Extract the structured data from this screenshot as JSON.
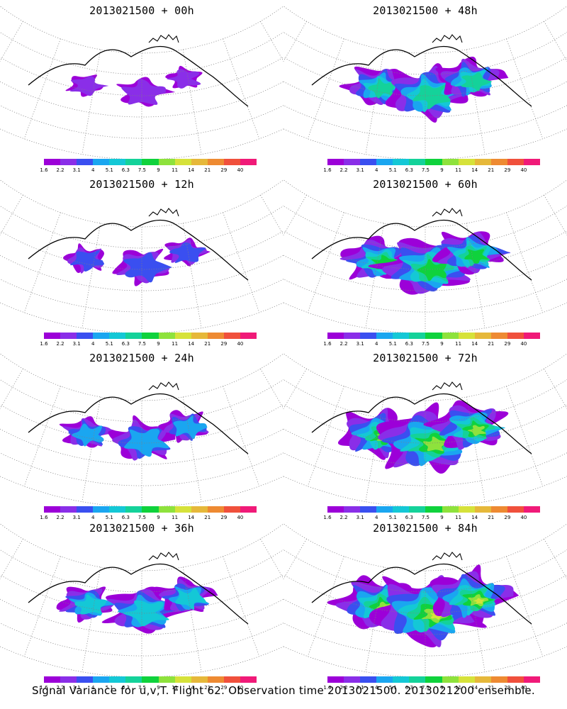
{
  "panels": [
    {
      "title": "2013021500  +  00h",
      "lead_hours": 0
    },
    {
      "title": "2013021500  +  48h",
      "lead_hours": 48
    },
    {
      "title": "2013021500  +  12h",
      "lead_hours": 12
    },
    {
      "title": "2013021500  +  60h",
      "lead_hours": 60
    },
    {
      "title": "2013021500  +  24h",
      "lead_hours": 24
    },
    {
      "title": "2013021500  +  72h",
      "lead_hours": 72
    },
    {
      "title": "2013021500  +  36h",
      "lead_hours": 36
    },
    {
      "title": "2013021500  +  84h",
      "lead_hours": 84
    }
  ],
  "colorbar": {
    "labels": [
      "1.6",
      "2.2",
      "3.1",
      "4",
      "5.1",
      "6.3",
      "7.5",
      "9",
      "11",
      "14",
      "21",
      "29",
      "40"
    ],
    "colors": [
      "#9c00d8",
      "#8a2ee8",
      "#3a4ff0",
      "#1aa6f0",
      "#14c8d6",
      "#14d29a",
      "#0fd23c",
      "#8ee23c",
      "#d6e23a",
      "#e6b83a",
      "#ee8a32",
      "#f0503c",
      "#f01a78"
    ]
  },
  "footer": {
    "caption": "Signal Variance for u,v,T. Flight 62. Observation time 2013021500. 2013021200 ensemble."
  }
}
